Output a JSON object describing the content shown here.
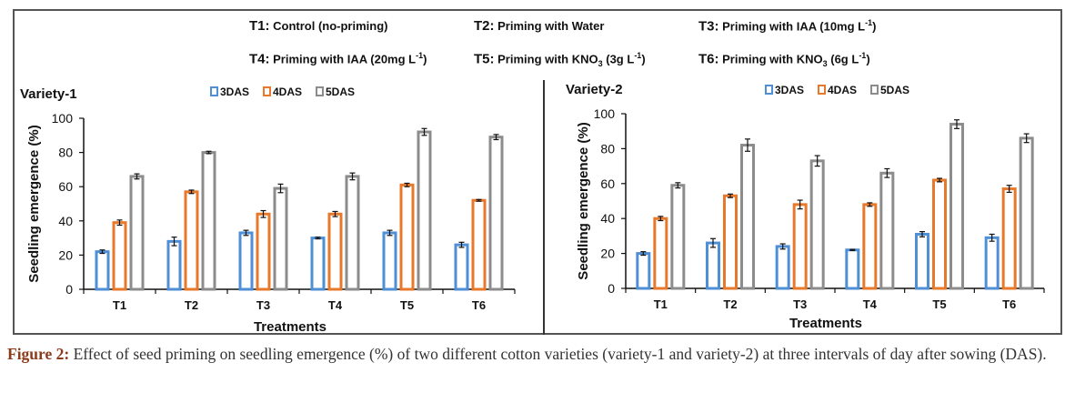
{
  "treatments_legend": [
    {
      "code": "T1:",
      "pre": "Control  (no-priming)",
      "sub": "",
      "post": "",
      "sup": "",
      "end": ""
    },
    {
      "code": "T2:",
      "pre": "Priming with Water",
      "sub": "",
      "post": "",
      "sup": "",
      "end": ""
    },
    {
      "code": "T3:",
      "pre": "Priming with IAA (10mg  L",
      "sub": "",
      "post": "",
      "sup": "-1",
      "end": ")"
    },
    {
      "code": "T4:",
      "pre": "Priming with IAA (20mg  L",
      "sub": "",
      "post": "",
      "sup": "-1",
      "end": ")"
    },
    {
      "code": "T5:",
      "pre": "Priming with KNO",
      "sub": "3",
      "post": " (3g  L",
      "sup": "-1",
      "end": ")"
    },
    {
      "code": "T6:",
      "pre": "Priming with KNO",
      "sub": "3",
      "post": " (6g  L",
      "sup": "-1",
      "end": ")"
    }
  ],
  "caption": {
    "label": "Figure 2:",
    "text": " Effect of seed priming on seedling emergence (%) of two different cotton varieties (variety-1 and variety-2) at three intervals of day after sowing (DAS)."
  },
  "chart_data": [
    {
      "type": "bar",
      "title": "Variety-1",
      "xlabel": "Treatments",
      "ylabel": "Seedling emergence (%)",
      "ylim": [
        0,
        100
      ],
      "yticks": [
        0,
        20,
        40,
        60,
        80,
        100
      ],
      "categories": [
        "T1",
        "T2",
        "T3",
        "T4",
        "T5",
        "T6"
      ],
      "legend_position": "top",
      "series": [
        {
          "name": "3DAS",
          "color": "#4f8fd6",
          "values": [
            22,
            28,
            33,
            30,
            33,
            26
          ],
          "errors": [
            1,
            2.5,
            1.5,
            0.5,
            1.5,
            1.5
          ]
        },
        {
          "name": "4DAS",
          "color": "#e8782a",
          "values": [
            39,
            57,
            44,
            44,
            61,
            52
          ],
          "errors": [
            1.5,
            1,
            2,
            1.5,
            1,
            0.5
          ]
        },
        {
          "name": "5DAS",
          "color": "#8c8c8c",
          "values": [
            66,
            80,
            59,
            66,
            92,
            89
          ],
          "errors": [
            1.5,
            0.7,
            2.5,
            2,
            2,
            1.5
          ]
        }
      ]
    },
    {
      "type": "bar",
      "title": "Variety-2",
      "xlabel": "Treatments",
      "ylabel": "Seedling emergence (%)",
      "ylim": [
        0,
        100
      ],
      "yticks": [
        0,
        20,
        40,
        60,
        80,
        100
      ],
      "categories": [
        "T1",
        "T2",
        "T3",
        "T4",
        "T5",
        "T6"
      ],
      "legend_position": "top",
      "series": [
        {
          "name": "3DAS",
          "color": "#4f8fd6",
          "values": [
            20,
            26,
            24,
            22,
            31,
            29
          ],
          "errors": [
            1,
            2.5,
            1.5,
            0.3,
            1.5,
            2
          ]
        },
        {
          "name": "4DAS",
          "color": "#e8782a",
          "values": [
            40,
            53,
            48,
            48,
            62,
            57
          ],
          "errors": [
            1.2,
            1,
            2.5,
            1,
            1,
            2
          ]
        },
        {
          "name": "5DAS",
          "color": "#8c8c8c",
          "values": [
            59,
            82,
            73,
            66,
            94,
            86
          ],
          "errors": [
            1.5,
            3.5,
            3,
            2.5,
            2.5,
            2.5
          ]
        }
      ]
    }
  ]
}
